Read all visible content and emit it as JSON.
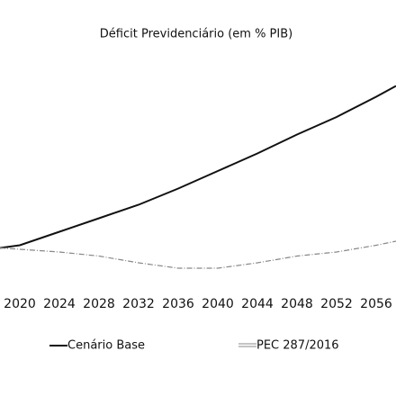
{
  "chart_data": {
    "type": "line",
    "title": "Déficit Previdenciário (em % PIB)",
    "x": [
      2018,
      2020,
      2024,
      2028,
      2032,
      2036,
      2040,
      2044,
      2048,
      2052,
      2056,
      2058
    ],
    "xlim": [
      2018,
      2058
    ],
    "xticks": [
      2020,
      2024,
      2028,
      2032,
      2036,
      2040,
      2044,
      2048,
      2052,
      2056
    ],
    "ylim": [
      0,
      20
    ],
    "series": [
      {
        "name": "Cenário Base",
        "color": "#111111",
        "values": [
          4.3,
          4.5,
          5.5,
          6.5,
          7.5,
          8.7,
          10.0,
          11.3,
          12.7,
          14.0,
          15.5,
          16.3
        ]
      },
      {
        "name": "PEC 287/2016",
        "color": "#888888",
        "values": [
          4.3,
          4.2,
          4.0,
          3.7,
          3.2,
          2.8,
          2.8,
          3.2,
          3.7,
          4.0,
          4.5,
          4.8
        ]
      }
    ],
    "legend": "bottom"
  }
}
